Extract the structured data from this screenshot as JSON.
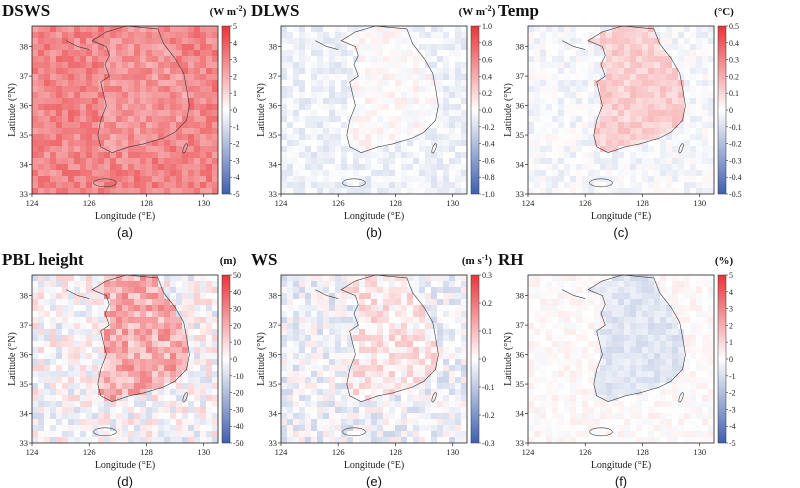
{
  "chart_data": [
    {
      "type": "heatmap",
      "label": "(a)",
      "title": "DSWS",
      "unit_base": "(W m",
      "unit_sup": "-2",
      "unit_end": ")",
      "cb_ticks": [
        "5",
        "4",
        "3",
        "2",
        "1",
        "0",
        "-1",
        "-2",
        "-3",
        "-4",
        "-5"
      ],
      "vmin": -5,
      "vmax": 5,
      "land_mean": 2.6,
      "sea_mean": 3.0,
      "noise": 0.8,
      "xlabel": "Longitude (°E)",
      "ylabel": "Latitude (°N)",
      "xticks": [
        "124",
        "126",
        "128",
        "130"
      ],
      "yticks": [
        "38",
        "37",
        "36",
        "35",
        "34",
        "33"
      ],
      "xlim": [
        124,
        130.5
      ],
      "ylim": [
        33,
        38.7
      ]
    },
    {
      "type": "heatmap",
      "label": "(b)",
      "title": "DLWS",
      "unit_base": "(W m",
      "unit_sup": "-2",
      "unit_end": ")",
      "cb_ticks": [
        "1.0",
        "0.8",
        "0.6",
        "0.4",
        "0.2",
        "0.0",
        "-0.2",
        "-0.4",
        "-0.6",
        "-0.8",
        "-1.0"
      ],
      "vmin": -1,
      "vmax": 1,
      "land_mean": 0.02,
      "sea_mean": -0.08,
      "noise": 0.1,
      "xlabel": "Longitude (°E)",
      "ylabel": "Latitude (°N)",
      "xticks": [
        "124",
        "126",
        "128",
        "130"
      ],
      "yticks": [
        "38",
        "37",
        "36",
        "35",
        "34",
        "33"
      ],
      "xlim": [
        124,
        130.5
      ],
      "ylim": [
        33,
        38.7
      ]
    },
    {
      "type": "heatmap",
      "label": "(c)",
      "title": "Temp",
      "unit_base": "(°C)",
      "unit_sup": "",
      "unit_end": "",
      "cb_ticks": [
        "0.5",
        "0.4",
        "0.3",
        "0.2",
        "0.1",
        "0",
        "-0.1",
        "-0.2",
        "-0.3",
        "-0.4",
        "-0.5"
      ],
      "vmin": -0.5,
      "vmax": 0.5,
      "land_mean": 0.12,
      "sea_mean": -0.02,
      "noise": 0.05,
      "xlabel": "Longitude (°E)",
      "ylabel": "Latitude (°N)",
      "xticks": [
        "124",
        "126",
        "128",
        "130"
      ],
      "yticks": [
        "38",
        "37",
        "36",
        "35",
        "34",
        "33"
      ],
      "xlim": [
        124,
        130.5
      ],
      "ylim": [
        33,
        38.7
      ]
    },
    {
      "type": "heatmap",
      "label": "(d)",
      "title": "PBL height",
      "unit_base": "(m)",
      "unit_sup": "",
      "unit_end": "",
      "cb_ticks": [
        "50",
        "40",
        "30",
        "20",
        "10",
        "0",
        "-10",
        "-20",
        "-30",
        "-40",
        "-50"
      ],
      "vmin": -50,
      "vmax": 50,
      "land_mean": 20,
      "sea_mean": 0,
      "noise": 12,
      "xlabel": "Longitude (°E)",
      "ylabel": "Latitude (°N)",
      "xticks": [
        "124",
        "126",
        "128",
        "130"
      ],
      "yticks": [
        "38",
        "37",
        "36",
        "35",
        "34",
        "33"
      ],
      "xlim": [
        124,
        130.5
      ],
      "ylim": [
        33,
        38.7
      ]
    },
    {
      "type": "heatmap",
      "label": "(e)",
      "title": "WS",
      "unit_base": "(m s",
      "unit_sup": "-1",
      "unit_end": ")",
      "cb_ticks": [
        "0.3",
        "0.2",
        "0.1",
        "0",
        "-0.1",
        "-0.2",
        "-0.3"
      ],
      "vmin": -0.3,
      "vmax": 0.3,
      "land_mean": 0.03,
      "sea_mean": -0.02,
      "noise": 0.06,
      "xlabel": "Longitude (°E)",
      "ylabel": "Latitude (°N)",
      "xticks": [
        "124",
        "126",
        "128",
        "130"
      ],
      "yticks": [
        "38",
        "37",
        "36",
        "35",
        "34",
        "33"
      ],
      "xlim": [
        124,
        130.5
      ],
      "ylim": [
        33,
        38.7
      ]
    },
    {
      "type": "heatmap",
      "label": "(f)",
      "title": "RH",
      "unit_base": "(%)",
      "unit_sup": "",
      "unit_end": "",
      "cb_ticks": [
        "5",
        "4",
        "3",
        "2",
        "1",
        "0",
        "-1",
        "-2",
        "-3",
        "-4",
        "-5"
      ],
      "vmin": -5,
      "vmax": 5,
      "land_mean": -0.8,
      "sea_mean": 0.1,
      "noise": 0.4,
      "xlabel": "Longitude (°E)",
      "ylabel": "Latitude (°N)",
      "xticks": [
        "124",
        "126",
        "128",
        "130"
      ],
      "yticks": [
        "38",
        "37",
        "36",
        "35",
        "34",
        "33"
      ],
      "xlim": [
        124,
        130.5
      ],
      "ylim": [
        33,
        38.7
      ]
    }
  ],
  "colors": {
    "neg": "#3d5fae",
    "mid": "#ffffff",
    "pos": "#e8353a",
    "coast": "#3a3a3a"
  }
}
